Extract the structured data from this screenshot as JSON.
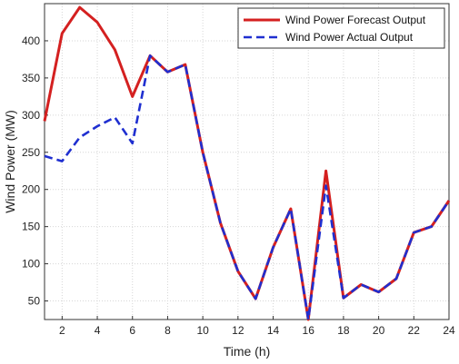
{
  "chart_data": {
    "type": "line",
    "xlabel": "Time (h)",
    "ylabel": "Wind Power (MW)",
    "xlim": [
      1,
      24
    ],
    "ylim": [
      25,
      450
    ],
    "xticks": [
      2,
      4,
      6,
      8,
      10,
      12,
      14,
      16,
      18,
      20,
      22,
      24
    ],
    "yticks": [
      50,
      100,
      150,
      200,
      250,
      300,
      350,
      400
    ],
    "grid": true,
    "legend_position": "top-right",
    "x": [
      1,
      2,
      3,
      4,
      5,
      6,
      7,
      8,
      9,
      10,
      11,
      12,
      13,
      14,
      15,
      16,
      17,
      18,
      19,
      20,
      21,
      22,
      23,
      24
    ],
    "series": [
      {
        "name": "Wind Power Forecast Output",
        "color": "#d42020",
        "style": "solid",
        "values": [
          292,
          410,
          445,
          425,
          388,
          325,
          380,
          358,
          368,
          250,
          155,
          90,
          53,
          122,
          174,
          25,
          225,
          54,
          72,
          62,
          80,
          142,
          150,
          185
        ]
      },
      {
        "name": "Wind Power Actual Output",
        "color": "#1f2fd0",
        "style": "dashed",
        "values": [
          245,
          238,
          270,
          285,
          297,
          262,
          380,
          358,
          368,
          250,
          155,
          90,
          53,
          122,
          174,
          25,
          205,
          54,
          72,
          62,
          80,
          142,
          150,
          185
        ]
      }
    ]
  }
}
